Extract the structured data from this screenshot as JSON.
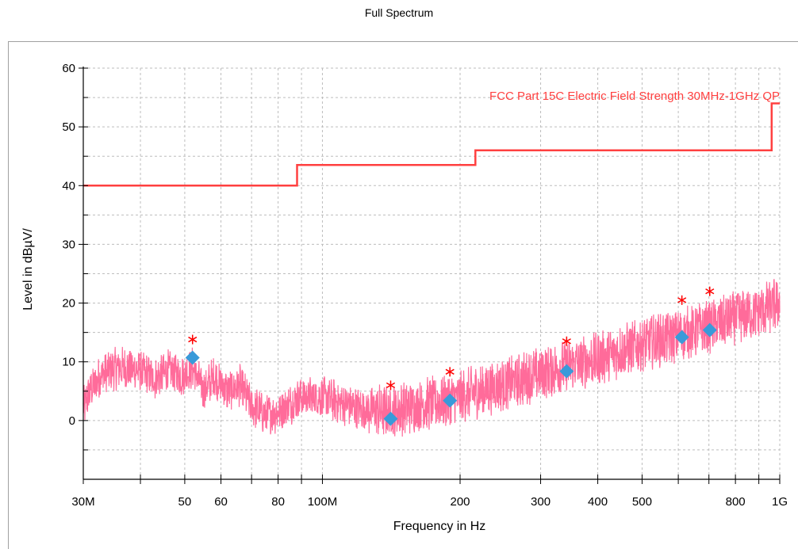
{
  "chart_data": {
    "type": "line",
    "title": "Full Spectrum",
    "xlabel": "Frequency in Hz",
    "ylabel": "Level in dBµV/",
    "x_scale": "log",
    "xlim": [
      30000000,
      1000000000
    ],
    "ylim": [
      -10,
      60
    ],
    "grid": true,
    "x_ticks": [
      {
        "value": 30000000,
        "label": "30M"
      },
      {
        "value": 50000000,
        "label": "50"
      },
      {
        "value": 60000000,
        "label": "60"
      },
      {
        "value": 80000000,
        "label": "80"
      },
      {
        "value": 100000000,
        "label": "100M"
      },
      {
        "value": 200000000,
        "label": "200"
      },
      {
        "value": 300000000,
        "label": "300"
      },
      {
        "value": 400000000,
        "label": "400"
      },
      {
        "value": 500000000,
        "label": "500"
      },
      {
        "value": 800000000,
        "label": "800"
      },
      {
        "value": 1000000000,
        "label": "1G"
      }
    ],
    "x_minor_ticks": [
      40000000,
      70000000,
      90000000,
      600000000,
      700000000,
      900000000
    ],
    "y_ticks": [
      {
        "value": 0,
        "label": "0"
      },
      {
        "value": 10,
        "label": "10"
      },
      {
        "value": 20,
        "label": "20"
      },
      {
        "value": 30,
        "label": "30"
      },
      {
        "value": 40,
        "label": "40"
      },
      {
        "value": 50,
        "label": "50"
      },
      {
        "value": 60,
        "label": "60"
      }
    ],
    "y_minor_ticks": [
      -5,
      5,
      15,
      25,
      35,
      45,
      55
    ],
    "limit_line": {
      "name": "FCC Part 15C Electric Field Strength 30MHz-1GHz QP",
      "color": "#ff4040",
      "points": [
        [
          30000000,
          40
        ],
        [
          88000000,
          40
        ],
        [
          88000000,
          43.5
        ],
        [
          216000000,
          43.5
        ],
        [
          216000000,
          46
        ],
        [
          960000000,
          46
        ],
        [
          960000000,
          54
        ],
        [
          1000000000,
          54
        ]
      ]
    },
    "spectrum": {
      "color": "#ff6b9a",
      "envelope": [
        [
          30000000,
          2
        ],
        [
          31000000,
          5
        ],
        [
          33000000,
          8
        ],
        [
          36000000,
          9
        ],
        [
          40000000,
          8.5
        ],
        [
          43000000,
          7
        ],
        [
          46000000,
          8.5
        ],
        [
          49000000,
          7.5
        ],
        [
          52000000,
          9
        ],
        [
          55000000,
          5
        ],
        [
          58000000,
          7.5
        ],
        [
          62000000,
          5
        ],
        [
          66000000,
          6
        ],
        [
          70000000,
          2.5
        ],
        [
          75000000,
          1
        ],
        [
          80000000,
          1.5
        ],
        [
          90000000,
          4
        ],
        [
          100000000,
          4
        ],
        [
          110000000,
          3
        ],
        [
          120000000,
          2
        ],
        [
          140000000,
          1.5
        ],
        [
          160000000,
          2.5
        ],
        [
          190000000,
          3.5
        ],
        [
          220000000,
          5
        ],
        [
          260000000,
          6.5
        ],
        [
          300000000,
          8
        ],
        [
          350000000,
          9.5
        ],
        [
          400000000,
          10.5
        ],
        [
          500000000,
          13
        ],
        [
          600000000,
          14.5
        ],
        [
          700000000,
          16
        ],
        [
          800000000,
          17.5
        ],
        [
          900000000,
          18.5
        ],
        [
          1000000000,
          20
        ]
      ]
    },
    "peak_markers": {
      "color": "#ff0000",
      "symbol": "asterisk",
      "points": [
        [
          52000000,
          13.8
        ],
        [
          141000000,
          6
        ],
        [
          190000000,
          8.3
        ],
        [
          342000000,
          13.5
        ],
        [
          611000000,
          20.5
        ],
        [
          703000000,
          22
        ]
      ]
    },
    "qp_markers": {
      "color": "#3a9ad9",
      "symbol": "diamond",
      "points": [
        [
          52000000,
          10.7
        ],
        [
          141000000,
          0.3
        ],
        [
          190000000,
          3.4
        ],
        [
          342000000,
          8.4
        ],
        [
          611000000,
          14.2
        ],
        [
          703000000,
          15.4
        ]
      ]
    }
  }
}
